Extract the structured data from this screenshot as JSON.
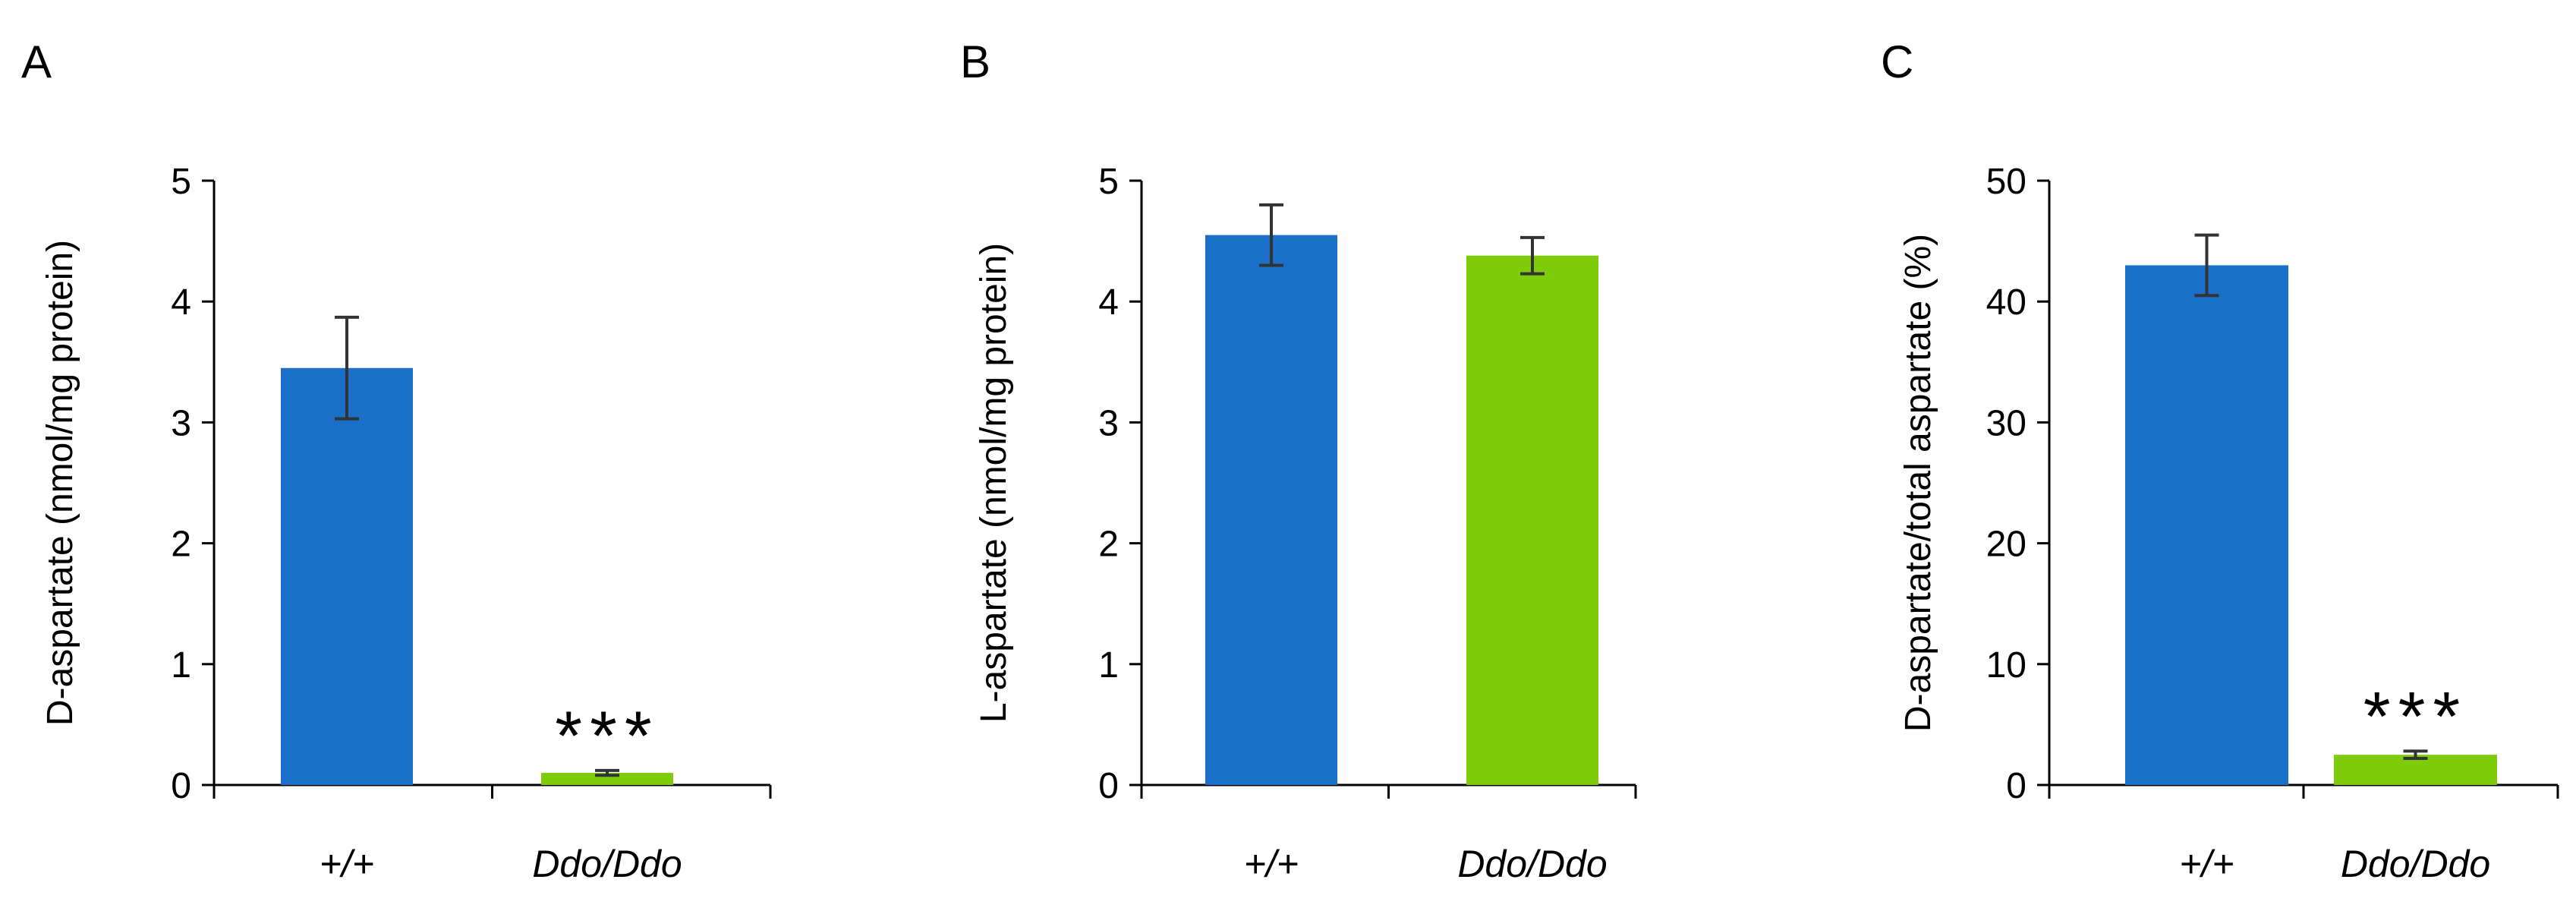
{
  "colors": {
    "wildtype": "#1a70c8",
    "mutant": "#7ecb0a",
    "axis": "#000000",
    "error_bar": "#333333"
  },
  "chart_data": [
    {
      "panel": "A",
      "type": "bar",
      "categories": [
        "+/+",
        "Ddo/Ddo"
      ],
      "values": [
        3.45,
        0.1
      ],
      "errors": [
        0.42,
        0.02
      ],
      "significance": [
        "",
        "***"
      ],
      "ylabel": "D-aspartate (nmol/mg protein)",
      "xlabel": "",
      "ylim": [
        0,
        5
      ],
      "yticks": [
        0,
        1,
        2,
        3,
        4,
        5
      ],
      "ytick_labels": [
        "0",
        "1",
        "2",
        "3",
        "4",
        "5"
      ],
      "grid": false
    },
    {
      "panel": "B",
      "type": "bar",
      "categories": [
        "+/+",
        "Ddo/Ddo"
      ],
      "values": [
        4.55,
        4.38
      ],
      "errors": [
        0.25,
        0.15
      ],
      "significance": [
        "",
        ""
      ],
      "ylabel": "L-aspartate (nmol/mg protein)",
      "xlabel": "",
      "ylim": [
        0,
        5
      ],
      "yticks": [
        0,
        1,
        2,
        3,
        4,
        5
      ],
      "ytick_labels": [
        "0",
        "1",
        "2",
        "3",
        "4",
        "5"
      ],
      "grid": false
    },
    {
      "panel": "C",
      "type": "bar",
      "categories": [
        "+/+",
        "Ddo/Ddo"
      ],
      "values": [
        43,
        2.5
      ],
      "errors": [
        2.5,
        0.3
      ],
      "significance": [
        "",
        "***"
      ],
      "ylabel": "D-aspartate/total aspartate (%)",
      "xlabel": "",
      "ylim": [
        0,
        50
      ],
      "yticks": [
        0,
        10,
        20,
        30,
        40,
        50
      ],
      "ytick_labels": [
        "0",
        "10",
        "20",
        "30",
        "40",
        "50"
      ],
      "grid": false
    }
  ]
}
